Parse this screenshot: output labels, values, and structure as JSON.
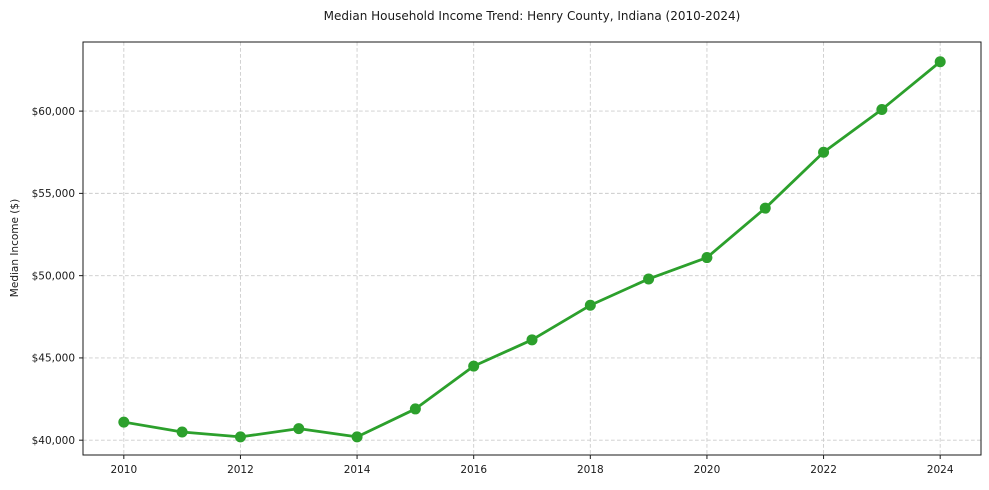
{
  "chart_data": {
    "type": "line",
    "title": "Median Household Income Trend: Henry County, Indiana (2010-2024)",
    "xlabel": "",
    "ylabel": "Median Income ($)",
    "x": [
      2010,
      2011,
      2012,
      2013,
      2014,
      2015,
      2016,
      2017,
      2018,
      2019,
      2020,
      2021,
      2022,
      2023,
      2024
    ],
    "series": [
      {
        "name": "Median Income ($)",
        "values": [
          41100,
          40500,
          40200,
          40700,
          40200,
          41900,
          44500,
          46100,
          48200,
          49800,
          51100,
          54100,
          57500,
          60100,
          63000
        ]
      }
    ],
    "xlim": [
      2009.3,
      2024.7
    ],
    "ylim": [
      39100,
      64200
    ],
    "xticks": {
      "values": [
        2010,
        2012,
        2014,
        2016,
        2018,
        2020,
        2022,
        2024
      ],
      "labels": [
        "2010",
        "2012",
        "2014",
        "2016",
        "2018",
        "2020",
        "2022",
        "2024"
      ]
    },
    "yticks": {
      "values": [
        40000,
        45000,
        50000,
        55000,
        60000
      ],
      "labels": [
        "$40,000",
        "$45,000",
        "$50,000",
        "$55,000",
        "$60,000"
      ]
    },
    "grid": true,
    "grid_style": "dashed",
    "legend": "none",
    "style": {
      "line_color": "#2ca02c",
      "marker_color": "#2ca02c",
      "line_width": 2.8,
      "marker_radius": 5.5,
      "grid_color": "#cccccc",
      "spine_color": "#1a1a1a",
      "tick_color": "#1a1a1a",
      "background": "#ffffff"
    }
  }
}
